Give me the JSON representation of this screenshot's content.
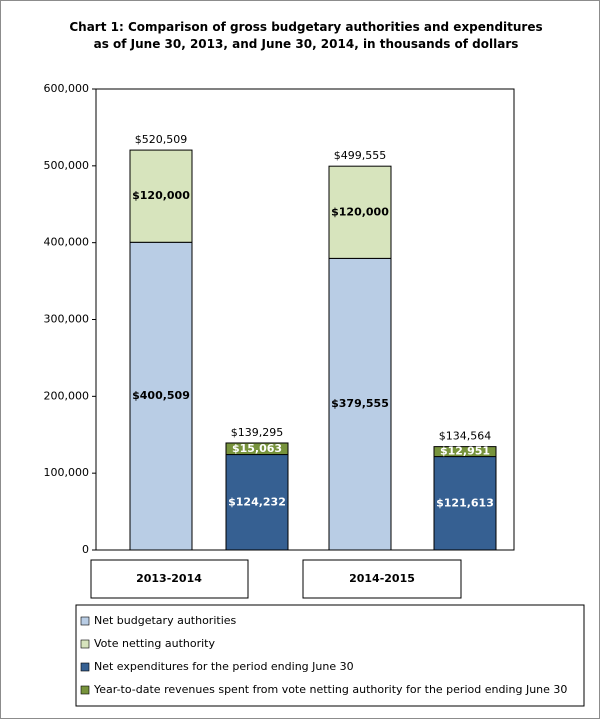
{
  "chart_data": {
    "type": "stacked-bar",
    "title": "Chart 1: Comparison of gross budgetary authorities and expenditures as of June 30, 2013, and June 30, 2014, in thousands of dollars",
    "categories": [
      null,
      null,
      null,
      null
    ],
    "groups": [
      "2013-2014",
      "2014-2015"
    ],
    "series": [
      {
        "name": "Net budgetary authorities",
        "color": "#b9cde5",
        "label_color": "#000000",
        "values": [
          400509,
          null,
          379555,
          null
        ],
        "value_labels": [
          "$400,509",
          null,
          "$379,555",
          null
        ]
      },
      {
        "name": "Vote netting authority",
        "color": "#d7e4bd",
        "label_color": "#000000",
        "values": [
          120000,
          null,
          120000,
          null
        ],
        "value_labels": [
          "$120,000",
          null,
          "$120,000",
          null
        ]
      },
      {
        "name": "Net expenditures for the period ending June 30",
        "color": "#366092",
        "label_color": "#ffffff",
        "values": [
          null,
          124232,
          null,
          121613
        ],
        "value_labels": [
          null,
          "$124,232",
          null,
          "$121,613"
        ]
      },
      {
        "name": "Year-to-date revenues spent from vote netting authority for the period ending June 30",
        "color": "#77933c",
        "label_color": "#ffffff",
        "values": [
          null,
          15063,
          null,
          12951
        ],
        "value_labels": [
          null,
          "$15,063",
          null,
          "$12,951"
        ]
      }
    ],
    "totals": {
      "values": [
        520509,
        139295,
        499555,
        134564
      ],
      "value_labels": [
        "$520,509",
        "$139,295",
        "$499,555",
        "$134,564"
      ]
    },
    "ylim": [
      0,
      600000
    ],
    "yticks": [
      0,
      {
        "value": 100000,
        "label": "100,000"
      },
      {
        "value": 200000,
        "label": "200,000"
      },
      {
        "value": 300000,
        "label": "300,000"
      },
      {
        "value": 400000,
        "label": "400,000"
      },
      {
        "value": 500000,
        "label": "500,000"
      },
      {
        "value": 600000,
        "label": "600,000"
      }
    ],
    "grid": false,
    "legend": "bottom"
  }
}
